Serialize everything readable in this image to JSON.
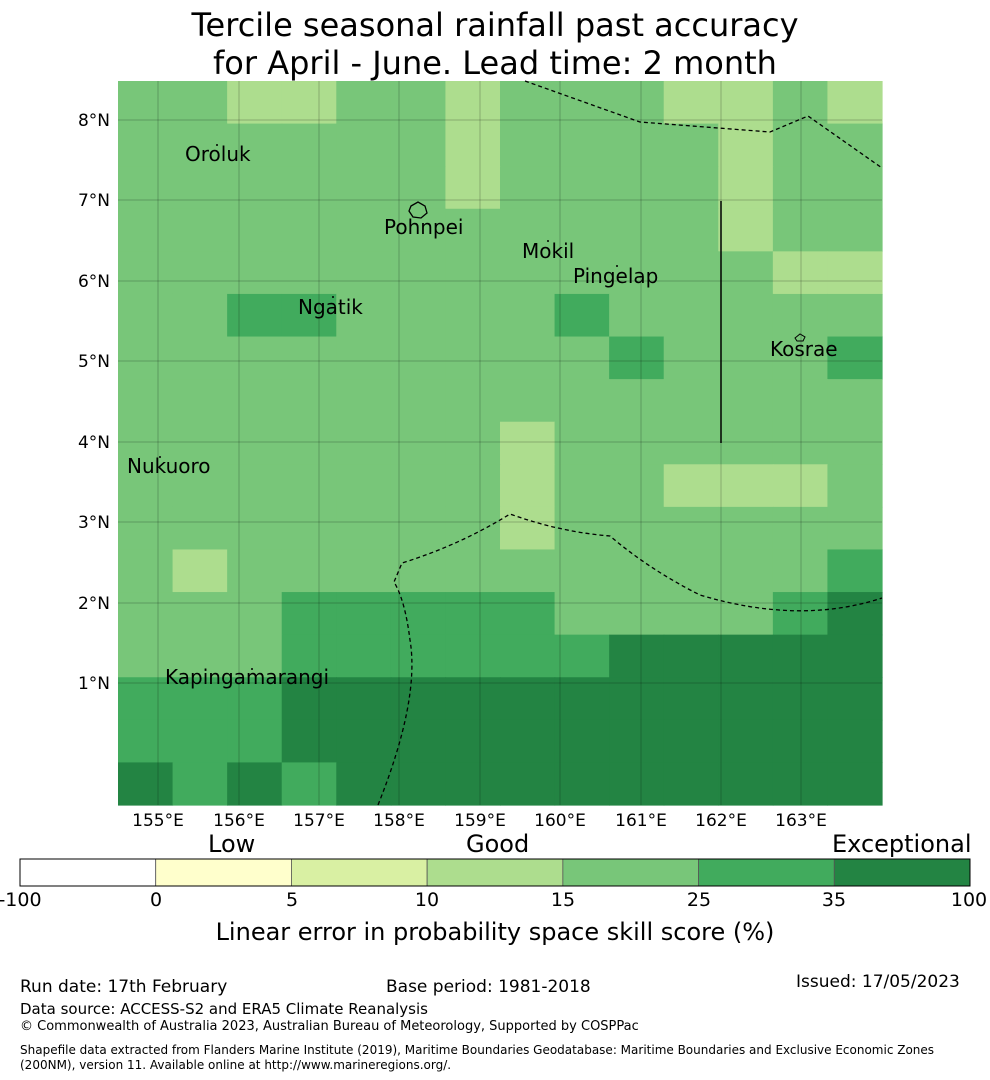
{
  "title": {
    "line1": "Tercile seasonal rainfall past accuracy",
    "line2": "for April - June. Lead time: 2 month"
  },
  "map": {
    "lat_ticks": [
      "8°N",
      "7°N",
      "6°N",
      "5°N",
      "4°N",
      "3°N",
      "2°N",
      "1°N"
    ],
    "lon_ticks": [
      "155°E",
      "156°E",
      "157°E",
      "158°E",
      "159°E",
      "160°E",
      "161°E",
      "162°E",
      "163°E"
    ],
    "places": [
      {
        "name": "Oroluk"
      },
      {
        "name": "Pohnpei"
      },
      {
        "name": "Mokil"
      },
      {
        "name": "Pingelap"
      },
      {
        "name": "Ngatik"
      },
      {
        "name": "Kosrae"
      },
      {
        "name": "Nukuoro"
      },
      {
        "name": "Kapingamarangi"
      }
    ],
    "class_colors": [
      "#ffffff",
      "#ffffcc",
      "#d9f0a3",
      "#addd8e",
      "#78c679",
      "#41ab5d",
      "#238443"
    ],
    "grid": [
      [
        4,
        4,
        3,
        3,
        4,
        4,
        3,
        4,
        4,
        4,
        3,
        3,
        4,
        3
      ],
      [
        4,
        4,
        4,
        4,
        4,
        4,
        3,
        4,
        4,
        4,
        4,
        3,
        4,
        4
      ],
      [
        4,
        4,
        4,
        4,
        4,
        4,
        3,
        4,
        4,
        4,
        4,
        3,
        4,
        4
      ],
      [
        4,
        4,
        4,
        4,
        4,
        4,
        4,
        4,
        4,
        4,
        4,
        3,
        4,
        4
      ],
      [
        4,
        4,
        4,
        4,
        4,
        4,
        4,
        4,
        4,
        4,
        4,
        4,
        3,
        3
      ],
      [
        4,
        4,
        5,
        5,
        4,
        4,
        4,
        4,
        5,
        4,
        4,
        4,
        4,
        4
      ],
      [
        4,
        4,
        4,
        4,
        4,
        4,
        4,
        4,
        4,
        5,
        4,
        4,
        4,
        5
      ],
      [
        4,
        4,
        4,
        4,
        4,
        4,
        4,
        4,
        4,
        4,
        4,
        4,
        4,
        4
      ],
      [
        4,
        4,
        4,
        4,
        4,
        4,
        4,
        3,
        4,
        4,
        4,
        4,
        4,
        4
      ],
      [
        4,
        4,
        4,
        4,
        4,
        4,
        4,
        3,
        4,
        4,
        3,
        3,
        3,
        4
      ],
      [
        4,
        4,
        4,
        4,
        4,
        4,
        4,
        3,
        4,
        4,
        4,
        4,
        4,
        4
      ],
      [
        4,
        3,
        4,
        4,
        4,
        4,
        4,
        4,
        4,
        4,
        4,
        4,
        4,
        5
      ],
      [
        4,
        4,
        4,
        5,
        5,
        5,
        5,
        5,
        4,
        4,
        4,
        4,
        5,
        6
      ],
      [
        4,
        4,
        4,
        5,
        5,
        5,
        5,
        5,
        5,
        6,
        6,
        6,
        6,
        6
      ],
      [
        5,
        5,
        5,
        6,
        6,
        6,
        6,
        6,
        6,
        6,
        6,
        6,
        6,
        6
      ],
      [
        5,
        5,
        5,
        6,
        6,
        6,
        6,
        6,
        6,
        6,
        6,
        6,
        6,
        6
      ],
      [
        6,
        5,
        6,
        5,
        6,
        6,
        6,
        6,
        6,
        6,
        6,
        6,
        6,
        6
      ]
    ]
  },
  "colorbar": {
    "categories": [
      "Low",
      "Good",
      "Exceptional"
    ],
    "ticks": [
      "-100",
      "0",
      "5",
      "10",
      "15",
      "25",
      "35",
      "100"
    ],
    "colors": [
      "#ffffff",
      "#ffffcc",
      "#d9f0a3",
      "#addd8e",
      "#78c679",
      "#41ab5d",
      "#238443"
    ],
    "label": "Linear error in probability space skill score (%)"
  },
  "footer": {
    "run_date": "Run date: 17th February",
    "base_period": "Base period: 1981-2018",
    "issued": "Issued: 17/05/2023",
    "data_source": "Data source: ACCESS-S2 and ERA5 Climate Reanalysis",
    "copyright": "© Commonwealth of Australia 2023, Australian Bureau of Meteorology, Supported by COSPPac",
    "shapefile_line1": "Shapefile data extracted from Flanders Marine Institute (2019), Maritime Boundaries Geodatabase: Maritime Boundaries and Exclusive Economic Zones",
    "shapefile_line2": "(200NM), version 11. Available online at http://www.marineregions.org/."
  }
}
